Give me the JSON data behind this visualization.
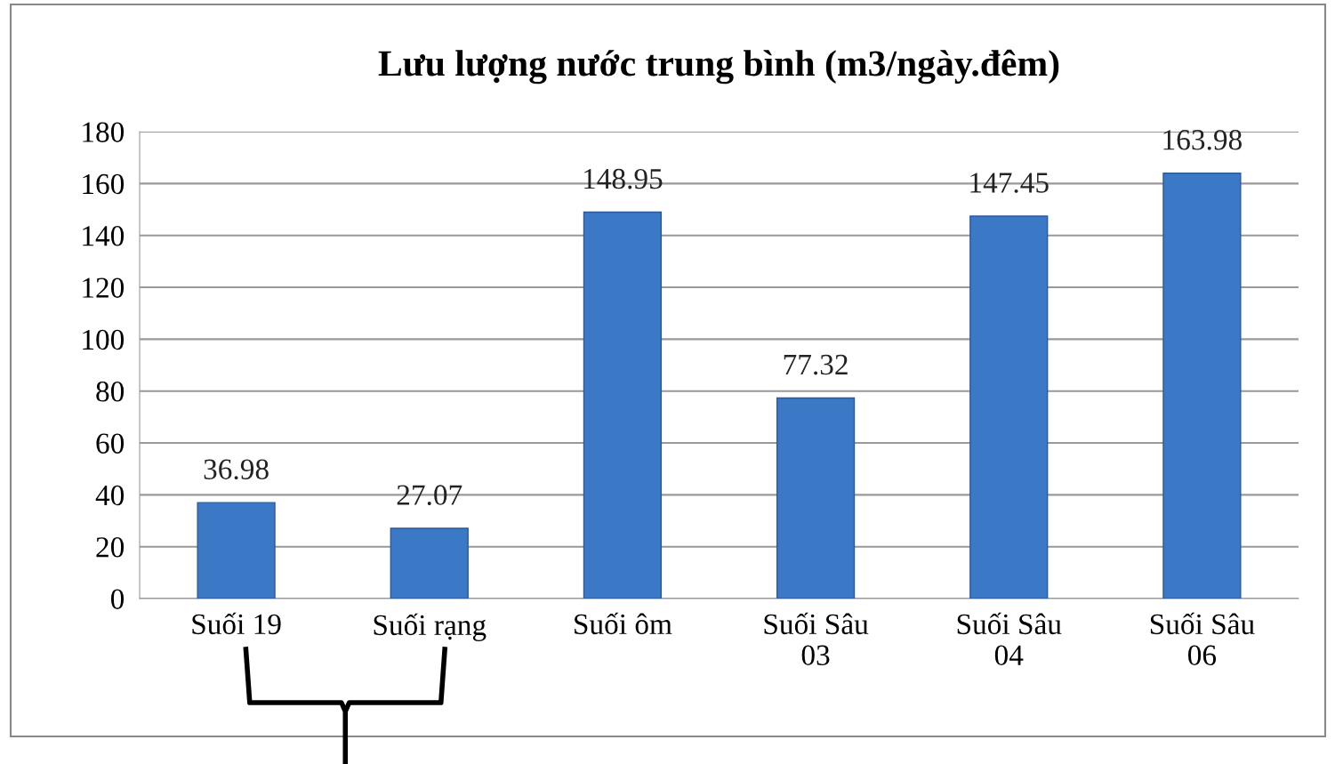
{
  "chart_data": {
    "type": "bar",
    "title": "Lưu lượng nước trung bình (m3/ngày.đêm)",
    "categories": [
      "Suối 19",
      "Suối rạng",
      "Suối ôm",
      "Suối Sâu\n03",
      "Suối Sâu\n04",
      "Suối Sâu\n06"
    ],
    "values": [
      36.98,
      27.07,
      148.95,
      77.32,
      147.45,
      163.98
    ],
    "color": "#3b78c6",
    "data_labels": true,
    "ylim": [
      0,
      180
    ],
    "yticks": [
      0,
      20,
      40,
      60,
      80,
      100,
      120,
      140,
      160,
      180
    ],
    "grid": "y",
    "legend": false
  }
}
